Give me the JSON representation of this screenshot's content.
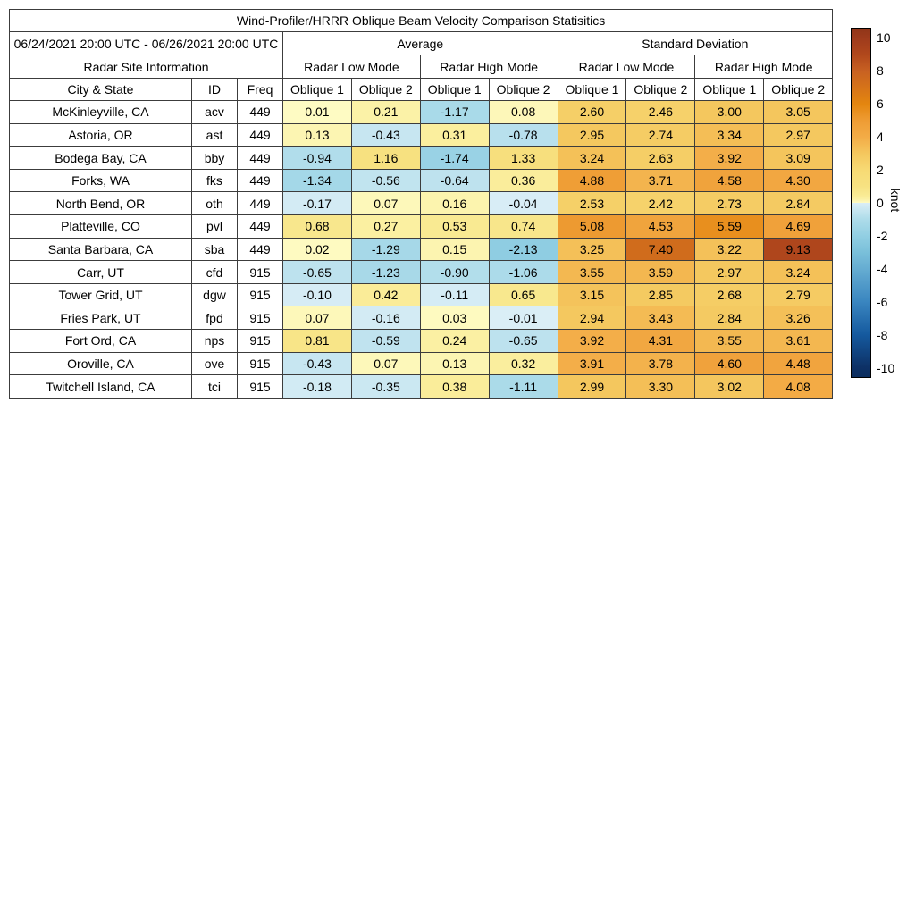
{
  "chart_data": {
    "type": "heatmap-table",
    "title": "Wind-Profiler/HRRR Oblique Beam Velocity Comparison Statisitics",
    "date_range": "06/24/2021 20:00 UTC - 06/26/2021 20:00 UTC",
    "site_info_header": "Radar Site Information",
    "group_headers": [
      "Average",
      "Standard Deviation"
    ],
    "mode_headers": [
      "Radar Low Mode",
      "Radar High Mode",
      "Radar Low Mode",
      "Radar High Mode"
    ],
    "site_columns": [
      "City & State",
      "ID",
      "Freq"
    ],
    "value_columns": [
      "Oblique 1",
      "Oblique 2",
      "Oblique 1",
      "Oblique 2",
      "Oblique 1",
      "Oblique 2",
      "Oblique 1",
      "Oblique 2"
    ],
    "rows": [
      {
        "city": "McKinleyville, CA",
        "id": "acv",
        "freq": "449",
        "values": [
          0.01,
          0.21,
          -1.17,
          0.08,
          2.6,
          2.46,
          3.0,
          3.05
        ]
      },
      {
        "city": "Astoria, OR",
        "id": "ast",
        "freq": "449",
        "values": [
          0.13,
          -0.43,
          0.31,
          -0.78,
          2.95,
          2.74,
          3.34,
          2.97
        ]
      },
      {
        "city": "Bodega Bay, CA",
        "id": "bby",
        "freq": "449",
        "values": [
          -0.94,
          1.16,
          -1.74,
          1.33,
          3.24,
          2.63,
          3.92,
          3.09
        ]
      },
      {
        "city": "Forks, WA",
        "id": "fks",
        "freq": "449",
        "values": [
          -1.34,
          -0.56,
          -0.64,
          0.36,
          4.88,
          3.71,
          4.58,
          4.3
        ]
      },
      {
        "city": "North Bend, OR",
        "id": "oth",
        "freq": "449",
        "values": [
          -0.17,
          0.07,
          0.16,
          -0.04,
          2.53,
          2.42,
          2.73,
          2.84
        ]
      },
      {
        "city": "Platteville, CO",
        "id": "pvl",
        "freq": "449",
        "values": [
          0.68,
          0.27,
          0.53,
          0.74,
          5.08,
          4.53,
          5.59,
          4.69
        ]
      },
      {
        "city": "Santa Barbara, CA",
        "id": "sba",
        "freq": "449",
        "values": [
          0.02,
          -1.29,
          0.15,
          -2.13,
          3.25,
          7.4,
          3.22,
          9.13
        ]
      },
      {
        "city": "Carr, UT",
        "id": "cfd",
        "freq": "915",
        "values": [
          -0.65,
          -1.23,
          -0.9,
          -1.06,
          3.55,
          3.59,
          2.97,
          3.24
        ]
      },
      {
        "city": "Tower Grid, UT",
        "id": "dgw",
        "freq": "915",
        "values": [
          -0.1,
          0.42,
          -0.11,
          0.65,
          3.15,
          2.85,
          2.68,
          2.79
        ]
      },
      {
        "city": "Fries Park, UT",
        "id": "fpd",
        "freq": "915",
        "values": [
          0.07,
          -0.16,
          0.03,
          -0.01,
          2.94,
          3.43,
          2.84,
          3.26
        ]
      },
      {
        "city": "Fort Ord, CA",
        "id": "nps",
        "freq": "915",
        "values": [
          0.81,
          -0.59,
          0.24,
          -0.65,
          3.92,
          4.31,
          3.55,
          3.61
        ]
      },
      {
        "city": "Oroville, CA",
        "id": "ove",
        "freq": "915",
        "values": [
          -0.43,
          0.07,
          0.13,
          0.32,
          3.91,
          3.78,
          4.6,
          4.48
        ]
      },
      {
        "city": "Twitchell Island, CA",
        "id": "tci",
        "freq": "915",
        "values": [
          -0.18,
          -0.35,
          0.38,
          -1.11,
          2.99,
          3.3,
          3.02,
          4.08
        ]
      }
    ],
    "colorbar": {
      "label": "knot",
      "ticks": [
        10,
        8,
        6,
        4,
        2,
        0,
        -2,
        -4,
        -6,
        -8,
        -10
      ],
      "vmin": -10,
      "vmax": 10,
      "anchors": [
        [
          -10.6,
          "#0b2d5e"
        ],
        [
          -10,
          "#0d3166"
        ],
        [
          -8,
          "#155a9f"
        ],
        [
          -6,
          "#3a86c0"
        ],
        [
          -4,
          "#66add2"
        ],
        [
          -3,
          "#7ac0da"
        ],
        [
          -2,
          "#92cfe3"
        ],
        [
          -1,
          "#aedcea"
        ],
        [
          -0.001,
          "#daeef6"
        ],
        [
          0,
          "#fefbc4"
        ],
        [
          0.25,
          "#fbf0a2"
        ],
        [
          0.5,
          "#f9ea93"
        ],
        [
          1,
          "#f7e282"
        ],
        [
          2,
          "#f7da74"
        ],
        [
          3,
          "#f4c75e"
        ],
        [
          4,
          "#f3ac47"
        ],
        [
          5,
          "#ee9c34"
        ],
        [
          6,
          "#e4860f"
        ],
        [
          8,
          "#c86122"
        ],
        [
          9,
          "#b1481c"
        ],
        [
          10,
          "#9e3b1c"
        ],
        [
          10.6,
          "#903518"
        ]
      ]
    }
  }
}
